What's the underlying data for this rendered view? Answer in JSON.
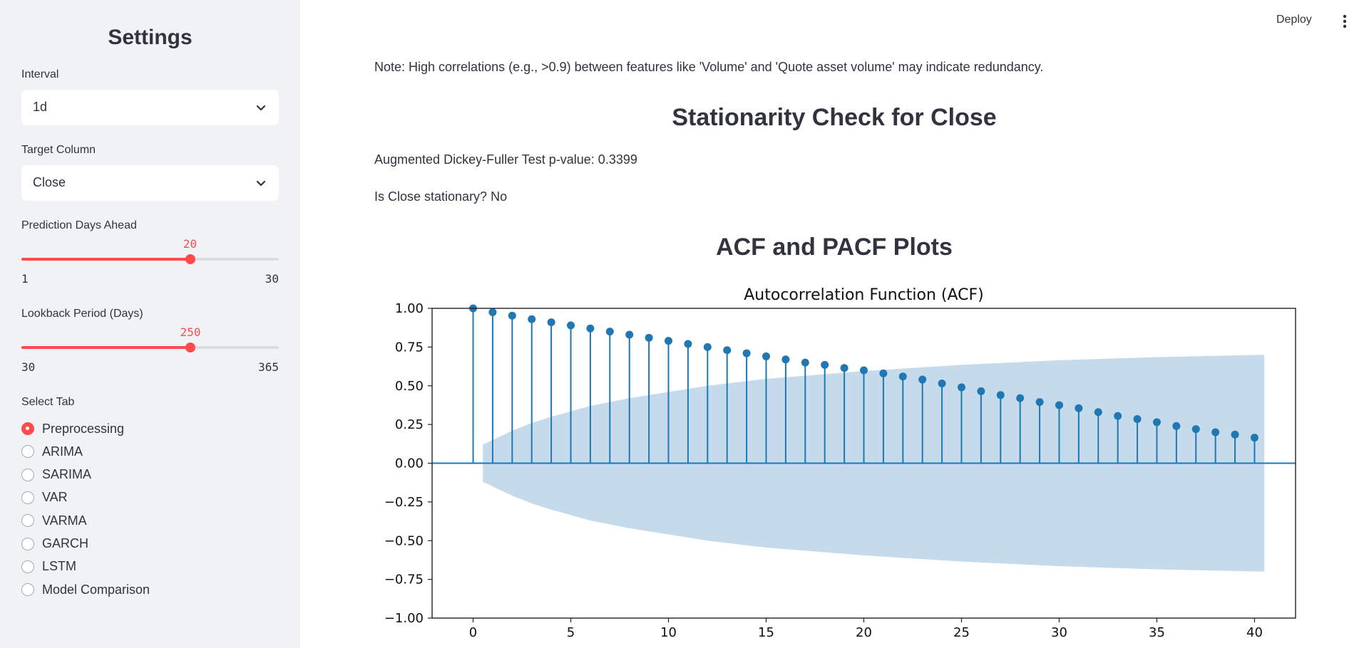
{
  "sidebar": {
    "title": "Settings",
    "interval": {
      "label": "Interval",
      "value": "1d",
      "icon": "chevron-down-icon"
    },
    "target_column": {
      "label": "Target Column",
      "value": "Close",
      "icon": "chevron-down-icon"
    },
    "prediction_days": {
      "label": "Prediction Days Ahead",
      "value": 20,
      "min": 1,
      "max": 30
    },
    "lookback_period": {
      "label": "Lookback Period (Days)",
      "value": 250,
      "min": 30,
      "max": 365
    },
    "select_tab": {
      "label": "Select Tab",
      "options": [
        "Preprocessing",
        "ARIMA",
        "SARIMA",
        "VAR",
        "VARMA",
        "GARCH",
        "LSTM",
        "Model Comparison"
      ],
      "selected": "Preprocessing"
    }
  },
  "header": {
    "deploy_label": "Deploy",
    "menu_icon": "more-vert-icon"
  },
  "main": {
    "note": "Note: High correlations (e.g., >0.9) between features like 'Volume' and 'Quote asset volume' may indicate redundancy.",
    "stationarity_heading": "Stationarity Check for Close",
    "adf_text": "Augmented Dickey-Fuller Test p-value: 0.3399",
    "stationary_text": "Is Close stationary? No",
    "acf_pacf_heading": "ACF and PACF Plots"
  },
  "colors": {
    "accent": "#ff4b4b",
    "sidebar_bg": "#f0f2f6",
    "stem": "#1f77b4",
    "confidence_band": "#c5daeb"
  },
  "chart_data": {
    "type": "scatter",
    "title": "Autocorrelation Function (ACF)",
    "xlabel": "",
    "ylabel": "",
    "x": [
      0,
      1,
      2,
      3,
      4,
      5,
      6,
      7,
      8,
      9,
      10,
      11,
      12,
      13,
      14,
      15,
      16,
      17,
      18,
      19,
      20,
      21,
      22,
      23,
      24,
      25,
      26,
      27,
      28,
      29,
      30,
      31,
      32,
      33,
      34,
      35,
      36,
      37,
      38,
      39,
      40
    ],
    "series": [
      {
        "values": [
          1.0,
          0.975,
          0.953,
          0.93,
          0.91,
          0.89,
          0.87,
          0.85,
          0.83,
          0.81,
          0.79,
          0.77,
          0.75,
          0.73,
          0.71,
          0.69,
          0.67,
          0.65,
          0.635,
          0.615,
          0.6,
          0.58,
          0.56,
          0.54,
          0.515,
          0.49,
          0.465,
          0.44,
          0.42,
          0.395,
          0.375,
          0.355,
          0.33,
          0.305,
          0.285,
          0.265,
          0.24,
          0.22,
          0.2,
          0.185,
          0.165
        ]
      }
    ],
    "confidence_band": {
      "x": [
        0.5,
        1,
        2,
        3,
        4,
        5,
        6,
        7,
        8,
        10,
        12,
        15,
        20,
        25,
        30,
        35,
        40.5
      ],
      "upper": [
        0.12,
        0.15,
        0.21,
        0.26,
        0.3,
        0.335,
        0.37,
        0.395,
        0.42,
        0.46,
        0.5,
        0.545,
        0.595,
        0.635,
        0.665,
        0.685,
        0.7
      ]
    },
    "xlim": [
      -2.1,
      42.1
    ],
    "ylim": [
      -1.0,
      1.0
    ],
    "xticks": [
      0,
      5,
      10,
      15,
      20,
      25,
      30,
      35,
      40
    ],
    "yticks": [
      1.0,
      0.75,
      0.5,
      0.25,
      0.0,
      -0.25,
      -0.5,
      -0.75,
      -1.0
    ],
    "ytick_labels": [
      "1.00",
      "0.75",
      "0.50",
      "0.25",
      "0.00",
      "−0.25",
      "−0.50",
      "−0.75",
      "−1.00"
    ]
  }
}
